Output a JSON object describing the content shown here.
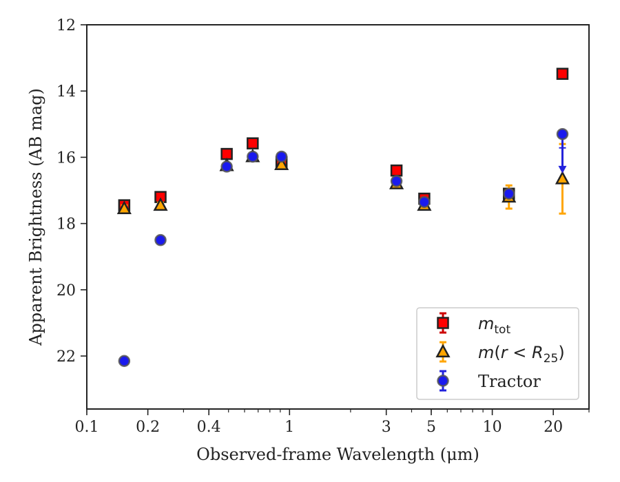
{
  "chart_data": {
    "type": "scatter",
    "title": "",
    "xlabel": "Observed-frame Wavelength (μm)",
    "ylabel": "Apparent Brightness (AB mag)",
    "xscale": "log",
    "xlim": [
      0.1,
      30
    ],
    "ylim": [
      23.6,
      12
    ],
    "y_inverted": true,
    "xticks": [
      {
        "value": 0.1,
        "label": "0.1"
      },
      {
        "value": 0.2,
        "label": "0.2"
      },
      {
        "value": 0.4,
        "label": "0.4"
      },
      {
        "value": 1,
        "label": "1"
      },
      {
        "value": 3,
        "label": "3"
      },
      {
        "value": 5,
        "label": "5"
      },
      {
        "value": 10,
        "label": "10"
      },
      {
        "value": 20,
        "label": "20"
      }
    ],
    "yticks": [
      {
        "value": 12,
        "label": "12"
      },
      {
        "value": 14,
        "label": "14"
      },
      {
        "value": 16,
        "label": "16"
      },
      {
        "value": 18,
        "label": "18"
      },
      {
        "value": 20,
        "label": "20"
      },
      {
        "value": 22,
        "label": "22"
      }
    ],
    "legend_position": "lower right",
    "series": [
      {
        "name": "m_tot",
        "legend_label": {
          "base": "m",
          "sub": "tot"
        },
        "marker": "square",
        "color": "#ff0000",
        "edge_color": "#222222",
        "errbar_color": "#cc0000",
        "points": [
          {
            "x": 0.153,
            "y": 17.45,
            "err": 0.1
          },
          {
            "x": 0.231,
            "y": 17.2,
            "err": 0.08
          },
          {
            "x": 0.49,
            "y": 15.9,
            "err": 0.05
          },
          {
            "x": 0.658,
            "y": 15.58,
            "err": 0.05
          },
          {
            "x": 0.913,
            "y": 16.15,
            "err": 0.05
          },
          {
            "x": 3.37,
            "y": 16.4,
            "err": 0.05
          },
          {
            "x": 4.62,
            "y": 17.25,
            "err": 0.06
          },
          {
            "x": 12.08,
            "y": 17.1,
            "err": 0.15
          },
          {
            "x": 22.19,
            "y": 13.48,
            "err": 0.05
          }
        ]
      },
      {
        "name": "m(r < R25)",
        "legend_label": {
          "base": "m(r < R",
          "sub": "25",
          "tail": ")"
        },
        "marker": "triangle",
        "color": "#ffa500",
        "edge_color": "#222222",
        "errbar_color": "#ffa500",
        "points": [
          {
            "x": 0.153,
            "y": 17.55,
            "err": 0.1
          },
          {
            "x": 0.231,
            "y": 17.45,
            "err": 0.08
          },
          {
            "x": 0.49,
            "y": 16.25,
            "err": 0.05
          },
          {
            "x": 0.658,
            "y": 15.98,
            "err": 0.05
          },
          {
            "x": 0.913,
            "y": 16.22,
            "err": 0.05
          },
          {
            "x": 3.37,
            "y": 16.8,
            "err": 0.05
          },
          {
            "x": 4.62,
            "y": 17.45,
            "err": 0.06
          },
          {
            "x": 12.08,
            "y": 17.2,
            "err": 0.35
          },
          {
            "x": 22.19,
            "y": 16.65,
            "err": 1.05
          }
        ]
      },
      {
        "name": "Tractor",
        "legend_label": {
          "base": "Tractor"
        },
        "marker": "circle",
        "color": "#1a1aee",
        "edge_color": "#555555",
        "errbar_color": "#2222dd",
        "points": [
          {
            "x": 0.153,
            "y": 22.15,
            "err": 0.05
          },
          {
            "x": 0.231,
            "y": 18.5,
            "err": 0.05
          },
          {
            "x": 0.49,
            "y": 16.28,
            "err": 0.05
          },
          {
            "x": 0.658,
            "y": 15.98,
            "err": 0.05
          },
          {
            "x": 0.913,
            "y": 15.98,
            "err": 0.05
          },
          {
            "x": 3.37,
            "y": 16.72,
            "err": 0.05
          },
          {
            "x": 4.62,
            "y": 17.35,
            "err": 0.05
          },
          {
            "x": 12.08,
            "y": 17.1,
            "err": 0.05
          },
          {
            "x": 22.19,
            "y": 15.3,
            "err": 0.05,
            "upper_limit": true,
            "limit_to": 16.3
          }
        ]
      }
    ]
  }
}
